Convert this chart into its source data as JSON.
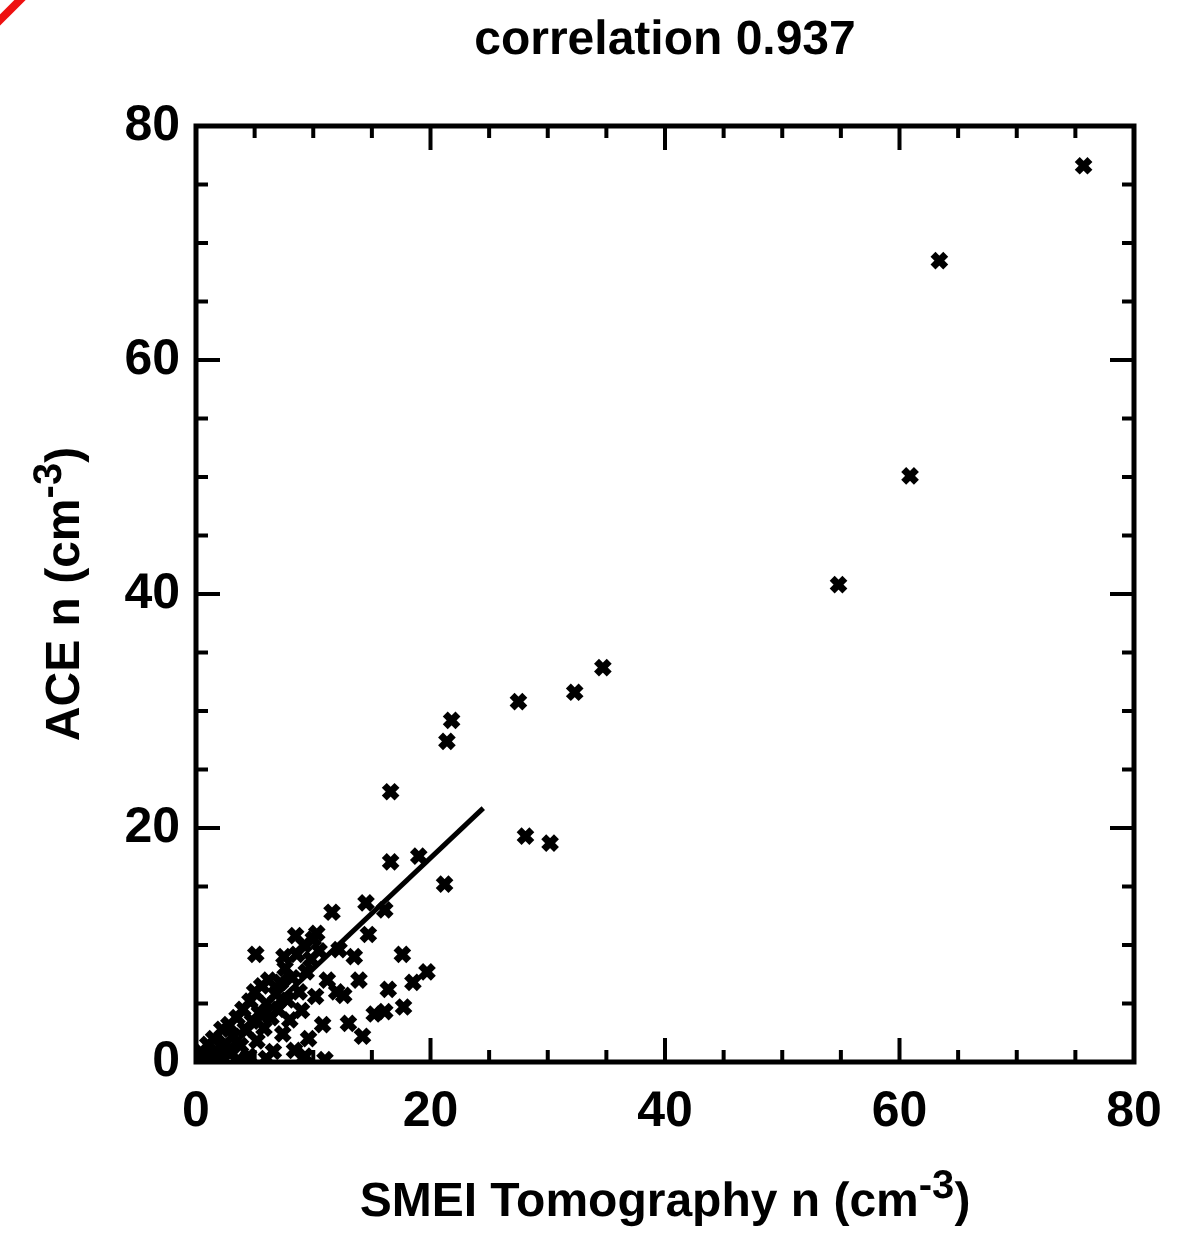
{
  "chart_data": {
    "type": "scatter",
    "title": "correlation 0.937",
    "xlabel": "SMEI Tomography n (cm$^{-3}$)",
    "ylabel": "ACE n (cm$^{-3}$)",
    "xlim": [
      0,
      80
    ],
    "ylim": [
      0,
      80
    ],
    "xticks": [
      0,
      {
        "value": 5,
        "label": null
      },
      {
        "value": 10,
        "label": null
      },
      {
        "value": 15,
        "label": null
      },
      20,
      {
        "value": 25,
        "label": null
      },
      {
        "value": 30,
        "label": null
      },
      {
        "value": 35,
        "label": null
      },
      40,
      {
        "value": 45,
        "label": null
      },
      {
        "value": 50,
        "label": null
      },
      {
        "value": 55,
        "label": null
      },
      60,
      {
        "value": 65,
        "label": null
      },
      {
        "value": 70,
        "label": null
      },
      {
        "value": 75,
        "label": null
      },
      80
    ],
    "yticks": [
      0,
      {
        "value": 5,
        "label": null
      },
      {
        "value": 10,
        "label": null
      },
      {
        "value": 15,
        "label": null
      },
      20,
      {
        "value": 25,
        "label": null
      },
      {
        "value": 30,
        "label": null
      },
      {
        "value": 35,
        "label": null
      },
      40,
      {
        "value": 45,
        "label": null
      },
      {
        "value": 50,
        "label": null
      },
      {
        "value": 55,
        "label": null
      },
      60,
      {
        "value": 65,
        "label": null
      },
      {
        "value": 70,
        "label": null
      },
      {
        "value": 75,
        "label": null
      },
      80
    ],
    "grid": false,
    "legend": false,
    "series": [
      {
        "type": "scatter",
        "marker": "cross",
        "color": "#000000",
        "x": [
          75.7,
          63.4,
          60.9,
          54.8,
          34.7,
          32.3,
          27.5,
          21.8,
          21.4,
          16.6,
          28.1,
          30.2,
          16.6,
          19.0,
          21.2,
          14.5,
          16.1,
          11.6,
          14.7,
          5.1,
          17.6,
          13.5,
          19.7,
          18.5,
          16.4,
          17.7,
          16.1,
          15.2,
          13.0,
          14.2,
          12.0,
          12.6,
          13.9,
          0.3,
          0.5,
          1.0,
          1.2,
          1.5,
          1.7,
          2.0,
          2.2,
          2.5,
          2.8,
          3.0,
          3.2,
          3.5,
          3.8,
          4.0,
          4.2,
          4.5,
          4.6,
          4.8,
          5.0,
          5.2,
          5.4,
          5.6,
          5.8,
          6.0,
          6.2,
          6.4,
          6.6,
          6.8,
          7.0,
          7.2,
          7.4,
          7.6,
          7.8,
          8.0,
          8.2,
          8.4,
          8.6,
          8.8,
          9.0,
          9.2,
          9.4,
          9.6,
          9.8,
          10.0,
          10.2,
          10.5,
          10.8,
          11.0,
          11.2,
          9.3,
          6.0,
          3.5,
          12.2,
          7.5,
          8.5,
          10.3
        ],
        "values": [
          76.6,
          68.5,
          50.1,
          40.8,
          33.7,
          31.6,
          30.8,
          29.2,
          27.4,
          23.1,
          19.3,
          18.7,
          17.1,
          17.6,
          15.2,
          13.6,
          13.0,
          12.8,
          10.9,
          9.2,
          9.2,
          9.0,
          7.7,
          6.8,
          6.2,
          4.7,
          4.3,
          4.1,
          3.3,
          2.2,
          6.0,
          5.7,
          7.0,
          0.2,
          0.8,
          1.5,
          0.6,
          2.0,
          1.0,
          0.4,
          2.8,
          1.6,
          3.2,
          0.8,
          2.2,
          3.8,
          1.4,
          4.5,
          2.8,
          0.5,
          5.2,
          3.5,
          6.0,
          1.8,
          4.2,
          6.5,
          2.9,
          5.0,
          7.0,
          3.8,
          0.9,
          5.8,
          4.5,
          6.8,
          2.4,
          8.0,
          5.3,
          3.6,
          7.2,
          1.0,
          9.2,
          6.0,
          4.4,
          10.0,
          7.7,
          2.0,
          8.8,
          10.5,
          5.6,
          9.5,
          3.2,
          0.2,
          7.0,
          0.5,
          0.3,
          0.1,
          9.6,
          9.0,
          10.8,
          11.0
        ]
      },
      {
        "type": "line",
        "color": "#000000",
        "x": [
          2.0,
          24.5
        ],
        "values": [
          0.4,
          21.7
        ]
      }
    ]
  }
}
